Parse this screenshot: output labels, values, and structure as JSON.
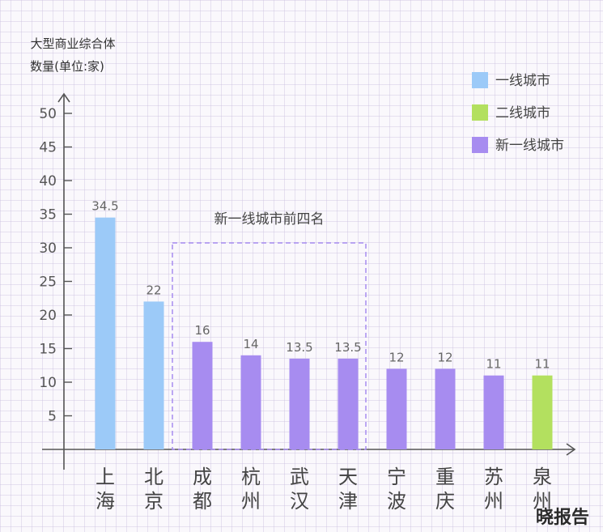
{
  "chart_data": {
    "type": "bar",
    "ylabel_lines": [
      "大型商业综合体",
      "数量(单位:家)"
    ],
    "xlabel": "",
    "ylim": [
      0,
      50
    ],
    "yticks": [
      5,
      10,
      15,
      20,
      25,
      30,
      35,
      40,
      45,
      50
    ],
    "categories": [
      "上海",
      "北京",
      "成都",
      "杭州",
      "武汉",
      "天津",
      "宁波",
      "重庆",
      "苏州",
      "泉州"
    ],
    "values": [
      34.5,
      22,
      16,
      14,
      13.5,
      13.5,
      12,
      12,
      11,
      11
    ],
    "value_labels": [
      "34.5",
      "22",
      "16",
      "14",
      "13.5",
      "13.5",
      "12",
      "12",
      "11",
      "11"
    ],
    "city_tier": [
      "一线城市",
      "一线城市",
      "新一线城市",
      "新一线城市",
      "新一线城市",
      "新一线城市",
      "新一线城市",
      "新一线城市",
      "新一线城市",
      "二线城市"
    ],
    "legend": [
      {
        "label": "一线城市",
        "color": "#9ccaf8"
      },
      {
        "label": "二线城市",
        "color": "#b3e05f"
      },
      {
        "label": "新一线城市",
        "color": "#a78cf0"
      }
    ],
    "legend_position": "top-right",
    "annotation": {
      "label": "新一线城市前四名",
      "covers_categories": [
        "成都",
        "杭州",
        "武汉",
        "天津"
      ],
      "border_color": "#a78cf0",
      "style": "dashed"
    },
    "grid": false
  },
  "watermark": {
    "text": "晓报告"
  }
}
